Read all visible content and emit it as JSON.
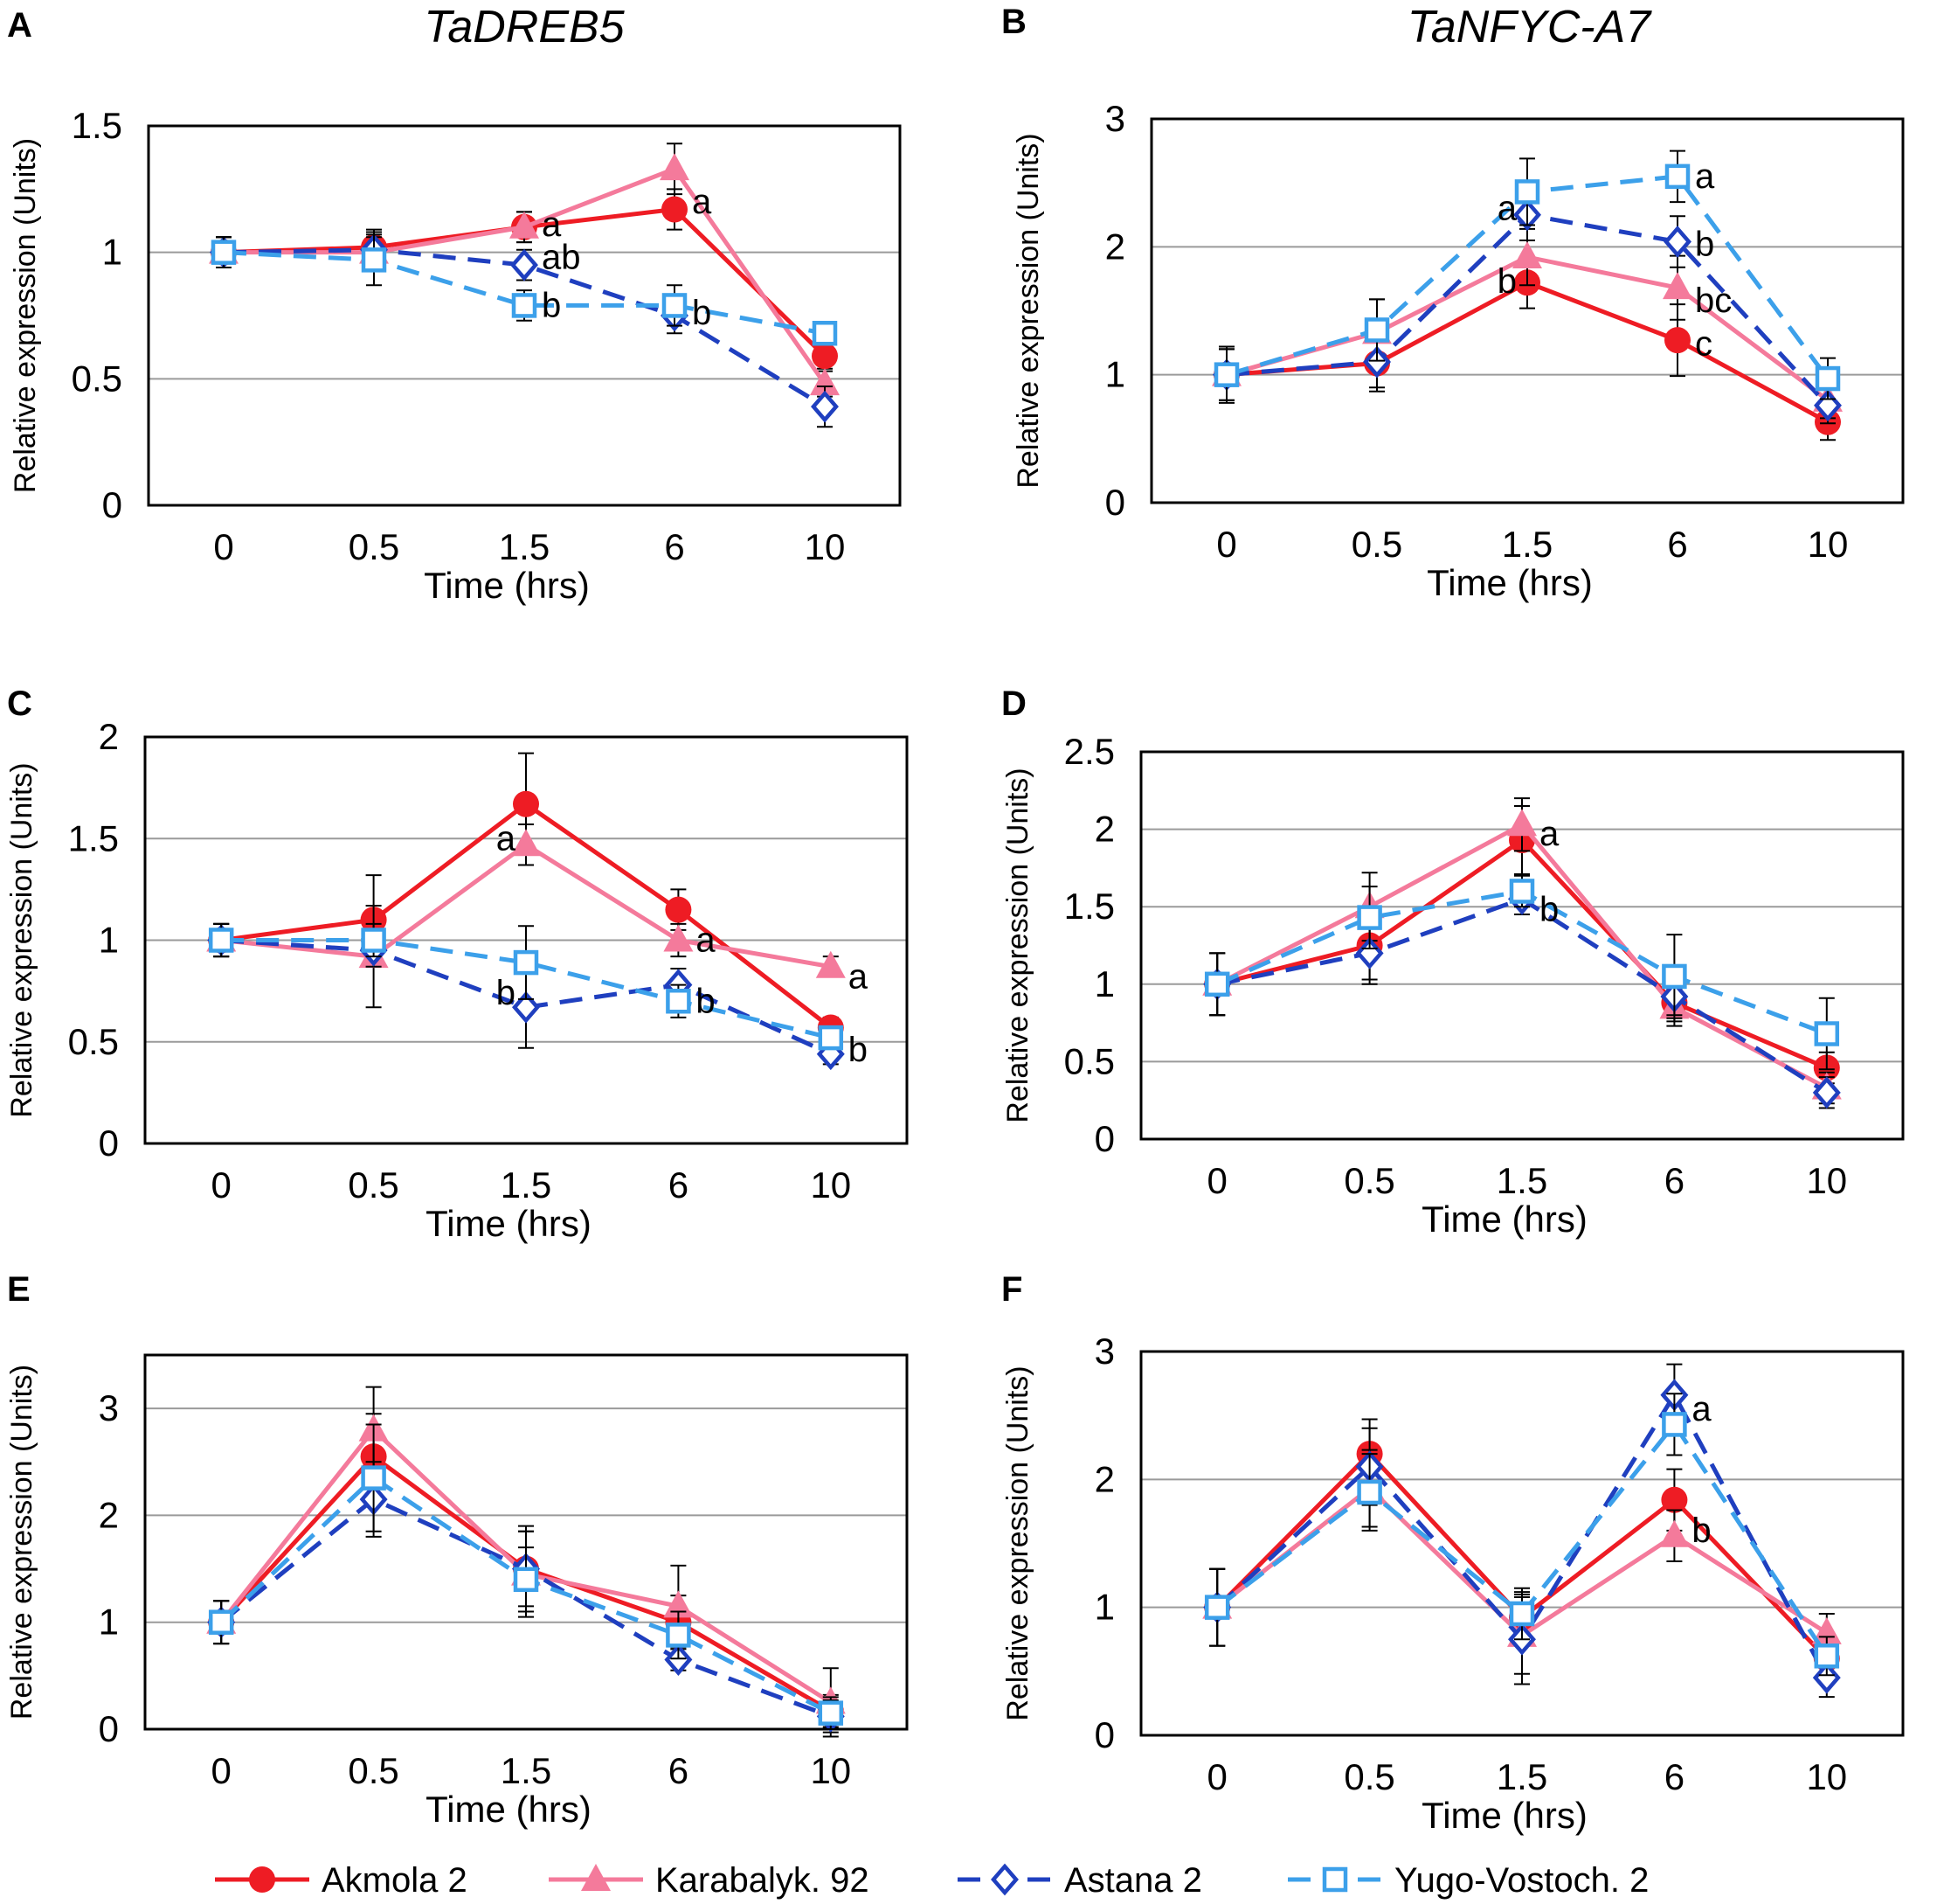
{
  "figure": {
    "series": [
      {
        "name": "Akmola 2",
        "color": "#ee1c24",
        "marker": "circle",
        "dashed": false
      },
      {
        "name": "Karabalyk. 92",
        "color": "#f47a9b",
        "marker": "triangle",
        "dashed": false
      },
      {
        "name": "Astana 2",
        "color": "#1f3fbf",
        "marker": "diamond",
        "dashed": true
      },
      {
        "name": "Yugo-Vostoch. 2",
        "color": "#3ca0ea",
        "marker": "square",
        "dashed": true
      }
    ],
    "gene_titles": [
      "TaDREB5",
      "TaNFYC-A7"
    ]
  },
  "chart_data": [
    {
      "panel": "A",
      "type": "line",
      "categories": [
        "0",
        "0.5",
        "1.5",
        "6",
        "10"
      ],
      "xlabel": "Time (hrs)",
      "ylabel": "Relative expression (Units)",
      "ylim": [
        0,
        1.5
      ],
      "yticks": [
        "0",
        "0.5",
        "1",
        "1.5"
      ],
      "grid": true,
      "series": [
        {
          "name": "Akmola 2",
          "values": [
            1.0,
            1.02,
            1.1,
            1.17,
            0.59
          ],
          "errors": [
            0.06,
            0.06,
            0.06,
            0.08,
            0.05
          ]
        },
        {
          "name": "Karabalyk. 92",
          "values": [
            1.0,
            1.0,
            1.1,
            1.33,
            0.48
          ],
          "errors": [
            0.06,
            0.06,
            0.06,
            0.1,
            0.05
          ]
        },
        {
          "name": "Astana 2",
          "values": [
            1.0,
            1.01,
            0.95,
            0.75,
            0.39
          ],
          "errors": [
            0.06,
            0.08,
            0.06,
            0.07,
            0.08
          ]
        },
        {
          "name": "Yugo-Vostoch. 2",
          "values": [
            1.0,
            0.97,
            0.79,
            0.79,
            0.68
          ],
          "errors": [
            0.06,
            0.1,
            0.06,
            0.08,
            0.04
          ]
        }
      ],
      "annotations": [
        {
          "text": "a",
          "x": 2,
          "y": 1.11
        },
        {
          "text": "ab",
          "x": 2,
          "y": 0.98
        },
        {
          "text": "b",
          "x": 2,
          "y": 0.79
        },
        {
          "text": "a",
          "x": 3,
          "y": 1.2
        },
        {
          "text": "b",
          "x": 3,
          "y": 0.76
        }
      ]
    },
    {
      "panel": "B",
      "type": "line",
      "categories": [
        "0",
        "0.5",
        "1.5",
        "6",
        "10"
      ],
      "xlabel": "Time (hrs)",
      "ylabel": "Relative expression (Units)",
      "ylim": [
        0,
        3
      ],
      "yticks": [
        "0",
        "1",
        "2",
        "3"
      ],
      "grid": true,
      "series": [
        {
          "name": "Akmola 2",
          "values": [
            1.0,
            1.09,
            1.72,
            1.27,
            0.63
          ],
          "errors": [
            0.22,
            0.22,
            0.2,
            0.28,
            0.14
          ]
        },
        {
          "name": "Karabalyk. 92",
          "values": [
            1.0,
            1.33,
            1.92,
            1.68,
            0.8
          ],
          "errors": [
            0.2,
            0.26,
            0.22,
            0.25,
            0.14
          ]
        },
        {
          "name": "Astana 2",
          "values": [
            1.0,
            1.1,
            2.25,
            2.04,
            0.76
          ],
          "errors": [
            0.2,
            0.2,
            0.2,
            0.2,
            0.14
          ]
        },
        {
          "name": "Yugo-Vostoch. 2",
          "values": [
            1.0,
            1.35,
            2.43,
            2.55,
            0.97
          ],
          "errors": [
            0.2,
            0.24,
            0.26,
            0.2,
            0.16
          ]
        }
      ],
      "annotations": [
        {
          "text": "a",
          "x": 2,
          "y": 2.3,
          "side": "left"
        },
        {
          "text": "b",
          "x": 2,
          "y": 1.73,
          "side": "left"
        },
        {
          "text": "a",
          "x": 3,
          "y": 2.55
        },
        {
          "text": "b",
          "x": 3,
          "y": 2.02
        },
        {
          "text": "bc",
          "x": 3,
          "y": 1.58
        },
        {
          "text": "c",
          "x": 3,
          "y": 1.24
        }
      ]
    },
    {
      "panel": "C",
      "type": "line",
      "categories": [
        "0",
        "0.5",
        "1.5",
        "6",
        "10"
      ],
      "xlabel": "Time (hrs)",
      "ylabel": "Relative expression (Units)",
      "ylim": [
        0,
        2
      ],
      "yticks": [
        "0",
        "0.5",
        "1",
        "1.5",
        "2"
      ],
      "grid": true,
      "series": [
        {
          "name": "Akmola 2",
          "values": [
            1.0,
            1.1,
            1.67,
            1.15,
            0.57
          ],
          "errors": [
            0.08,
            0.22,
            0.25,
            0.1,
            0.05
          ]
        },
        {
          "name": "Karabalyk. 92",
          "values": [
            1.0,
            0.92,
            1.47,
            1.0,
            0.87
          ],
          "errors": [
            0.08,
            0.25,
            0.1,
            0.08,
            0.05
          ]
        },
        {
          "name": "Astana 2",
          "values": [
            1.0,
            0.95,
            0.67,
            0.78,
            0.44
          ],
          "errors": [
            0.08,
            0.08,
            0.2,
            0.08,
            0.05
          ]
        },
        {
          "name": "Yugo-Vostoch. 2",
          "values": [
            1.0,
            1.0,
            0.89,
            0.7,
            0.52
          ],
          "errors": [
            0.08,
            0.08,
            0.18,
            0.08,
            0.05
          ]
        }
      ],
      "annotations": [
        {
          "text": "a",
          "x": 2,
          "y": 1.5,
          "side": "left"
        },
        {
          "text": "b",
          "x": 2,
          "y": 0.74,
          "side": "left"
        },
        {
          "text": "a",
          "x": 3,
          "y": 1.0
        },
        {
          "text": "b",
          "x": 3,
          "y": 0.7
        },
        {
          "text": "a",
          "x": 4,
          "y": 0.82
        },
        {
          "text": "b",
          "x": 4,
          "y": 0.46
        }
      ]
    },
    {
      "panel": "D",
      "type": "line",
      "categories": [
        "0",
        "0.5",
        "1.5",
        "6",
        "10"
      ],
      "xlabel": "Time (hrs)",
      "ylabel": "Relative expression (Units)",
      "ylim": [
        0,
        2.5
      ],
      "yticks": [
        "0",
        "0.5",
        "1",
        "1.5",
        "2",
        "2.5"
      ],
      "grid": true,
      "series": [
        {
          "name": "Akmola 2",
          "values": [
            1.0,
            1.25,
            1.93,
            0.88,
            0.46
          ],
          "errors": [
            0.2,
            0.22,
            0.22,
            0.12,
            0.1
          ]
        },
        {
          "name": "Karabalyk. 92",
          "values": [
            1.0,
            1.5,
            2.03,
            0.85,
            0.33
          ],
          "errors": [
            0.2,
            0.22,
            0.17,
            0.12,
            0.1
          ]
        },
        {
          "name": "Astana 2",
          "values": [
            1.0,
            1.2,
            1.55,
            0.92,
            0.3
          ],
          "errors": [
            0.2,
            0.2,
            0.1,
            0.12,
            0.1
          ]
        },
        {
          "name": "Yugo-Vostoch. 2",
          "values": [
            1.0,
            1.43,
            1.6,
            1.05,
            0.68
          ],
          "errors": [
            0.2,
            0.2,
            0.1,
            0.27,
            0.23
          ]
        }
      ],
      "annotations": [
        {
          "text": "a",
          "x": 2,
          "y": 1.97
        },
        {
          "text": "b",
          "x": 2,
          "y": 1.48
        }
      ]
    },
    {
      "panel": "E",
      "type": "line",
      "categories": [
        "0",
        "0.5",
        "1.5",
        "6",
        "10"
      ],
      "xlabel": "Time (hrs)",
      "ylabel": "Relative expression (Units)",
      "ylim": [
        0,
        3.5
      ],
      "yticks": [
        "0",
        "1",
        "2",
        "3"
      ],
      "grid": true,
      "series": [
        {
          "name": "Akmola 2",
          "values": [
            1.0,
            2.55,
            1.5,
            1.0,
            0.17
          ],
          "errors": [
            0.2,
            0.4,
            0.35,
            0.25,
            0.15
          ]
        },
        {
          "name": "Karabalyk. 92",
          "values": [
            1.0,
            2.8,
            1.45,
            1.15,
            0.25
          ],
          "errors": [
            0.2,
            0.4,
            0.4,
            0.38,
            0.32
          ]
        },
        {
          "name": "Astana 2",
          "values": [
            1.0,
            2.15,
            1.5,
            0.65,
            0.12
          ],
          "errors": [
            0.2,
            0.35,
            0.4,
            0.1,
            0.15
          ]
        },
        {
          "name": "Yugo-Vostoch. 2",
          "values": [
            1.0,
            2.35,
            1.4,
            0.88,
            0.15
          ],
          "errors": [
            0.2,
            0.5,
            0.3,
            0.22,
            0.15
          ]
        }
      ],
      "annotations": []
    },
    {
      "panel": "F",
      "type": "line",
      "categories": [
        "0",
        "0.5",
        "1.5",
        "6",
        "10"
      ],
      "xlabel": "Time (hrs)",
      "ylabel": "Relative expression (Units)",
      "ylim": [
        0,
        3
      ],
      "yticks": [
        "0",
        "1",
        "2",
        "3"
      ],
      "grid": true,
      "series": [
        {
          "name": "Akmola 2",
          "values": [
            1.0,
            2.2,
            0.92,
            1.84,
            0.6
          ],
          "errors": [
            0.3,
            0.27,
            0.2,
            0.24,
            0.15
          ]
        },
        {
          "name": "Karabalyk. 92",
          "values": [
            1.0,
            1.93,
            0.78,
            1.56,
            0.8
          ],
          "errors": [
            0.3,
            0.3,
            0.3,
            0.2,
            0.15
          ]
        },
        {
          "name": "Astana 2",
          "values": [
            1.0,
            2.1,
            0.75,
            2.66,
            0.45
          ],
          "errors": [
            0.3,
            0.3,
            0.35,
            0.24,
            0.15
          ]
        },
        {
          "name": "Yugo-Vostoch. 2",
          "values": [
            1.0,
            1.9,
            0.95,
            2.43,
            0.62
          ],
          "errors": [
            0.3,
            0.3,
            0.2,
            0.24,
            0.15
          ]
        }
      ],
      "annotations": [
        {
          "text": "a",
          "x": 3,
          "y": 2.55
        },
        {
          "text": "b",
          "x": 3,
          "y": 1.6
        }
      ]
    }
  ]
}
